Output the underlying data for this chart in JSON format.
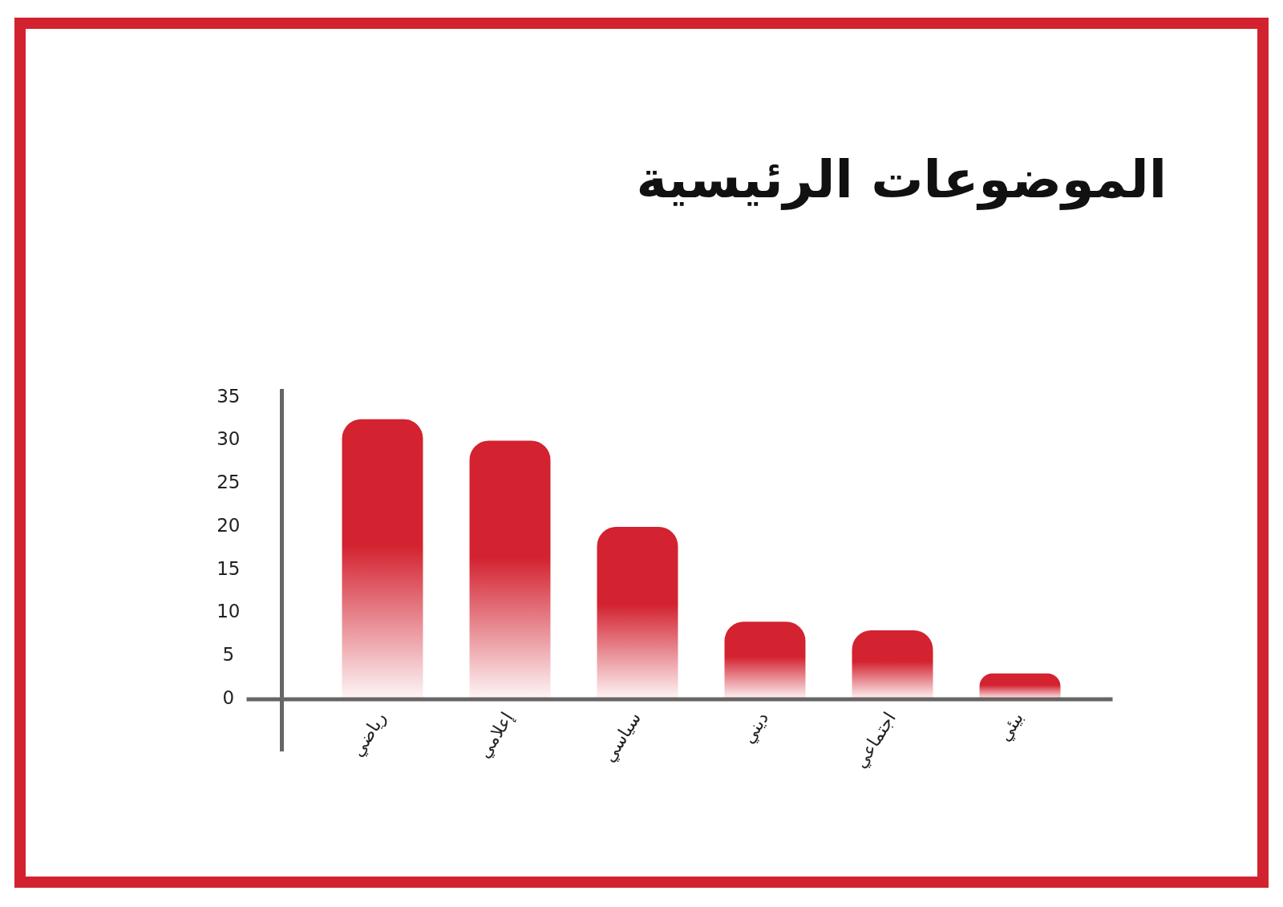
{
  "chart_data": {
    "type": "bar",
    "title": "الموضوعات الرئيسية",
    "categories": [
      "رياضي",
      "إعلامي",
      "سياسي",
      "ديني",
      "اجتماعي",
      "بيئي"
    ],
    "values": [
      32.5,
      30,
      20,
      9,
      8,
      3
    ],
    "color": "#d32230",
    "ylim": [
      0,
      36
    ],
    "yticks": [
      0,
      5,
      10,
      15,
      20,
      25,
      30,
      35
    ]
  }
}
